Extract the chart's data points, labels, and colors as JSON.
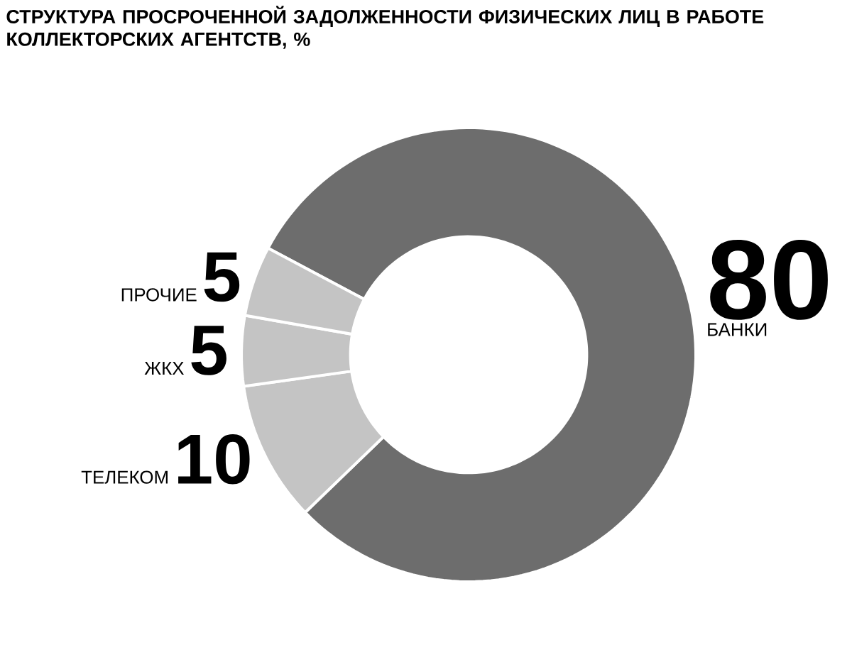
{
  "chart_data": {
    "type": "donut",
    "title": "СТРУКТУРА ПРОСРОЧЕННОЙ ЗАДОЛЖЕННОСТИ ФИЗИЧЕСКИХ ЛИЦ В РАБОТЕ КОЛЛЕКТОРСКИХ АГЕНТСТВ, %",
    "categories": [
      "БАНКИ",
      "ТЕЛЕКОМ",
      "ЖКХ",
      "ПРОЧИЕ"
    ],
    "values": [
      80,
      10,
      5,
      5
    ],
    "colors": [
      "#6d6d6d",
      "#c4c4c4",
      "#c4c4c4",
      "#c4c4c4"
    ],
    "data_labels": true
  }
}
